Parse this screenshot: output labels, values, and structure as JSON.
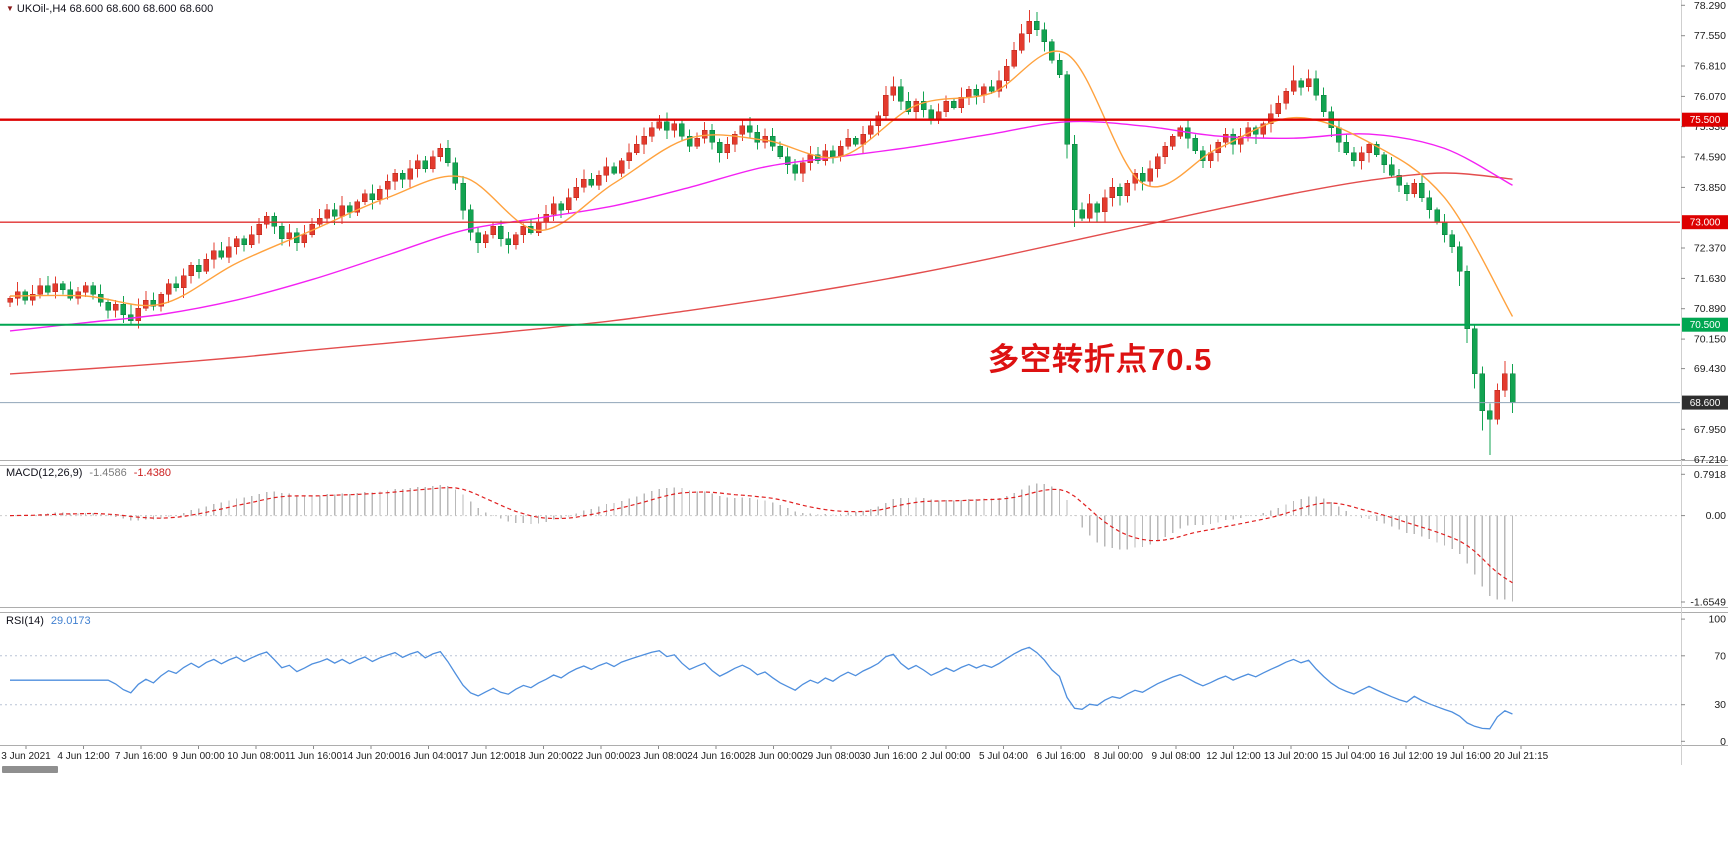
{
  "window": {
    "symbol_ohlc_line": "UKOil-,H4 68.600 68.600 68.600 68.600"
  },
  "annotation": {
    "text": "多空转折点70.5"
  },
  "indicators": {
    "macd": {
      "name": "MACD(12,26,9)",
      "value": "-1.4586",
      "signal_value": "-1.4380"
    },
    "rsi": {
      "name": "RSI(14)",
      "value": "29.0173"
    }
  },
  "chart_data": {
    "type": "candlestick",
    "symbol": "UKOil-",
    "timeframe": "H4",
    "title": "UKOil H4 chart with MACD and RSI panels",
    "price_axis": {
      "min": 67.21,
      "max": 78.29,
      "tick_labels": [
        78.29,
        77.55,
        76.81,
        76.07,
        75.33,
        74.59,
        73.85,
        72.37,
        71.63,
        70.89,
        70.15,
        69.43,
        67.95,
        67.21
      ],
      "highlighted_labels": [
        {
          "value": 75.5,
          "text": "75.500",
          "bg": "#dd0000"
        },
        {
          "value": 73.0,
          "text": "73.000",
          "bg": "#dd0000"
        },
        {
          "value": 70.5,
          "text": "70.500",
          "bg": "#00a651"
        },
        {
          "value": 68.6,
          "text": "68.600",
          "bg": "#2e2e2e"
        }
      ]
    },
    "time_axis": [
      "3 Jun 2021",
      "4 Jun 12:00",
      "7 Jun 16:00",
      "9 Jun 00:00",
      "10 Jun 08:00",
      "11 Jun 16:00",
      "14 Jun 20:00",
      "16 Jun 04:00",
      "17 Jun 12:00",
      "18 Jun 20:00",
      "22 Jun 00:00",
      "23 Jun 08:00",
      "24 Jun 16:00",
      "28 Jun 00:00",
      "29 Jun 08:00",
      "30 Jun 16:00",
      "2 Jul 00:00",
      "5 Jul 04:00",
      "6 Jul 16:00",
      "8 Jul 00:00",
      "9 Jul 08:00",
      "12 Jul 12:00",
      "13 Jul 20:00",
      "15 Jul 04:00",
      "16 Jul 12:00",
      "19 Jul 16:00",
      "20 Jul 21:15"
    ],
    "horizontal_lines": [
      {
        "value": 75.5,
        "color": "#dd0000",
        "width": 2.4
      },
      {
        "value": 73.0,
        "color": "#e03030",
        "width": 1.4
      },
      {
        "value": 70.5,
        "color": "#00a651",
        "width": 2.0
      },
      {
        "value": 68.6,
        "color": "#90a4b8",
        "width": 1.0
      }
    ],
    "current_price": 68.6,
    "candles": {
      "first_open": 71.05,
      "closes": [
        71.15,
        71.3,
        71.1,
        71.25,
        71.45,
        71.3,
        71.5,
        71.35,
        71.15,
        71.3,
        71.45,
        71.25,
        71.05,
        70.85,
        71.0,
        70.75,
        70.6,
        70.9,
        71.1,
        70.95,
        71.25,
        71.5,
        71.4,
        71.7,
        71.95,
        71.8,
        72.1,
        72.3,
        72.15,
        72.4,
        72.6,
        72.45,
        72.7,
        72.95,
        73.15,
        72.9,
        72.6,
        72.75,
        72.5,
        72.7,
        72.95,
        73.1,
        73.3,
        73.15,
        73.4,
        73.25,
        73.5,
        73.7,
        73.55,
        73.8,
        74.0,
        74.2,
        74.05,
        74.3,
        74.5,
        74.3,
        74.6,
        74.8,
        74.45,
        73.95,
        73.3,
        72.75,
        72.5,
        72.7,
        72.9,
        72.6,
        72.45,
        72.7,
        72.9,
        72.75,
        73.0,
        73.2,
        73.45,
        73.3,
        73.6,
        73.85,
        74.05,
        73.9,
        74.15,
        74.35,
        74.2,
        74.5,
        74.7,
        74.9,
        75.1,
        75.3,
        75.45,
        75.25,
        75.4,
        75.1,
        74.85,
        75.05,
        75.25,
        74.95,
        74.7,
        74.9,
        75.15,
        75.35,
        75.2,
        74.95,
        75.1,
        74.85,
        74.6,
        74.4,
        74.2,
        74.45,
        74.65,
        74.5,
        74.75,
        74.6,
        74.85,
        75.05,
        74.9,
        75.15,
        75.35,
        75.6,
        76.1,
        76.3,
        75.95,
        75.7,
        75.95,
        75.75,
        75.5,
        75.7,
        75.95,
        75.8,
        76.05,
        76.25,
        76.1,
        76.3,
        76.2,
        76.45,
        76.8,
        77.2,
        77.6,
        77.9,
        77.7,
        77.4,
        76.95,
        76.6,
        74.9,
        73.3,
        73.1,
        73.45,
        73.25,
        73.6,
        73.85,
        73.65,
        73.95,
        74.2,
        74.0,
        74.3,
        74.6,
        74.85,
        75.1,
        75.3,
        75.05,
        74.75,
        74.5,
        74.7,
        74.95,
        75.15,
        74.9,
        75.1,
        75.3,
        75.15,
        75.4,
        75.65,
        75.9,
        76.2,
        76.45,
        76.3,
        76.5,
        76.1,
        75.7,
        75.3,
        74.95,
        74.7,
        74.5,
        74.7,
        74.9,
        74.65,
        74.4,
        74.15,
        73.9,
        73.7,
        73.95,
        73.6,
        73.3,
        73.0,
        72.7,
        72.4,
        71.8,
        70.4,
        69.3,
        68.4,
        68.2,
        68.9,
        69.3,
        68.6
      ],
      "wick_overrides": {
        "16": {
          "low": 70.52
        },
        "57": {
          "high": 74.92
        },
        "86": {
          "high": 75.62
        },
        "117": {
          "high": 76.55
        },
        "135": {
          "high": 78.18
        },
        "140": {
          "low": 74.55
        },
        "141": {
          "low": 72.88
        },
        "170": {
          "high": 76.82
        },
        "172": {
          "high": 76.72
        },
        "192": {
          "low": 71.45
        },
        "193": {
          "low": 70.05
        },
        "194": {
          "low": 68.95
        },
        "195": {
          "low": 67.92
        },
        "196": {
          "low": 67.32
        },
        "198": {
          "high": 69.62
        },
        "199": {
          "low": 68.35
        }
      }
    },
    "moving_averages": {
      "sample_positions": [
        0,
        10,
        20,
        30,
        40,
        50,
        60,
        70,
        80,
        90,
        100,
        110,
        120,
        130,
        140,
        150,
        160,
        170,
        180,
        190,
        199
      ],
      "fast_orange": [
        71.2,
        71.2,
        71.0,
        72.0,
        72.8,
        73.6,
        74.1,
        72.8,
        73.95,
        75.05,
        75.0,
        74.6,
        75.85,
        76.15,
        77.1,
        73.95,
        74.8,
        75.55,
        74.95,
        73.6,
        70.7
      ],
      "mid_magenta": [
        70.35,
        70.55,
        70.75,
        71.1,
        71.6,
        72.2,
        72.8,
        73.1,
        73.4,
        73.85,
        74.35,
        74.6,
        74.85,
        75.15,
        75.45,
        75.35,
        75.1,
        75.05,
        75.15,
        74.8,
        73.9
      ],
      "slow_red": [
        69.3,
        69.42,
        69.55,
        69.7,
        69.88,
        70.05,
        70.22,
        70.4,
        70.6,
        70.85,
        71.12,
        71.42,
        71.75,
        72.12,
        72.52,
        72.92,
        73.32,
        73.7,
        74.02,
        74.2,
        74.05
      ]
    },
    "macd_panel": {
      "axis_labels": [
        {
          "text": "0.7918",
          "value": 0.7918
        },
        {
          "text": "0.00",
          "value": 0
        },
        {
          "text": "-1.6549",
          "value": -1.6549
        }
      ],
      "range": [
        -1.75,
        0.95
      ]
    },
    "rsi_panel": {
      "axis_labels": [
        {
          "text": "100",
          "value": 100
        },
        {
          "text": "70",
          "value": 70
        },
        {
          "text": "30",
          "value": 30
        },
        {
          "text": "0",
          "value": 0
        }
      ],
      "levels": [
        70,
        30
      ],
      "range": [
        -3,
        105
      ]
    }
  },
  "colors": {
    "bull": "#e33b2e",
    "bull_stroke": "#b7271c",
    "bear": "#12a351",
    "bear_stroke": "#0b7c3c",
    "ma_fast": "#ffa23e",
    "ma_mid": "#f321f3",
    "ma_slow": "#e34d4d",
    "macd_hist": "#b9b9b9",
    "macd_signal": "#e02020",
    "rsi_line": "#4f8fde",
    "rsi_level": "#b9c4d6",
    "axis_text": "#1c1c1c",
    "separator": "#adadad",
    "tick": "#8a8a8a",
    "annotation": "#dd1111",
    "grid_dotted": "#cccccc",
    "axis_line": "#cfcfcf"
  }
}
